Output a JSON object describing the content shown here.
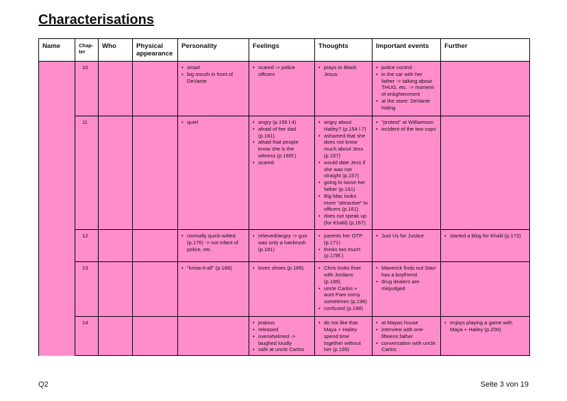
{
  "title": "Characterisations",
  "headers": {
    "name": "Name",
    "chapter_line1": "Chap-",
    "chapter_line2": "ter",
    "who": "Who",
    "physical_line1": "Physical",
    "physical_line2": "appearance",
    "personality": "Personality",
    "feelings": "Feelings",
    "thoughts": "Thoughts",
    "events": "Important events",
    "further": "Further"
  },
  "rows": [
    {
      "chapter": "10",
      "personality": [
        "smart",
        "big mouth in front of DeVante"
      ],
      "feelings": [
        "scared -> police officers"
      ],
      "thoughts": [
        "prays to Black Jesus"
      ],
      "events": [
        "police control",
        "in the car with her father -> talking about THUG, etc. -> moment of enlightenment",
        "at the store: DeVante hiding"
      ],
      "further": []
    },
    {
      "chapter": "11",
      "personality": [
        "quiet"
      ],
      "feelings": [
        "angry (p.156 l.4)",
        "afraid of her dad (p.161)",
        "afraid that people know she is the witness (p.165f.)",
        "scared"
      ],
      "thoughts": [
        "angry about Hailey? (p.154 l.7)",
        "ashamed that she does not know much about Jess (p.157)",
        "would date Jess if she was not straight (p.157)",
        "going to loose her father (p.161)",
        "Big Mac looks more \"attractive\" to officers (p.161)",
        "does not speak up (for Khalil) (p.167)"
      ],
      "events": [
        "\"protest\" at Williamson",
        "incident of the two cops"
      ],
      "further": []
    },
    {
      "chapter": "12",
      "personality": [
        "normally quick-witted (p.176) -> not infant of police, etc."
      ],
      "feelings": [
        "relieved/angry -> gun was only a hairbrush (p.181)"
      ],
      "thoughts": [
        "parents her OTP (p.171)",
        "thinks too much (p.178f.)"
      ],
      "events": [
        "Just Us for Justice"
      ],
      "further": [
        "started a blog for Khalil (p.172)"
      ]
    },
    {
      "chapter": "13",
      "personality": [
        "\"know-it-all\" (p.188)"
      ],
      "feelings": [
        "loves shoes (p.189)"
      ],
      "thoughts": [
        "Chris looks finer with Jordans (p.189)",
        "uncle Carlos + aunt Pam corny sometimes (p.196)",
        "confused (p.198)"
      ],
      "events": [
        "Maverick finds out Starr has a boyfriend",
        "drug dealers are misjudged"
      ],
      "further": []
    },
    {
      "chapter": "14",
      "personality": [],
      "feelings": [
        "jealous",
        "released",
        "overwhelmed -> laughed loudly",
        "safe at uncle Carlos"
      ],
      "thoughts": [
        "do not like that Maya + Hailey spend time together without her (p.199)"
      ],
      "events": [
        "at Mayas house",
        "interview with one-fifteens father",
        "conversation with uncle Carlos"
      ],
      "further": [
        "enjoys playing a game with Maya + Hailey (p.200)"
      ]
    }
  ],
  "footer": {
    "left": "Q2",
    "right": "Seite 3 von 19"
  }
}
